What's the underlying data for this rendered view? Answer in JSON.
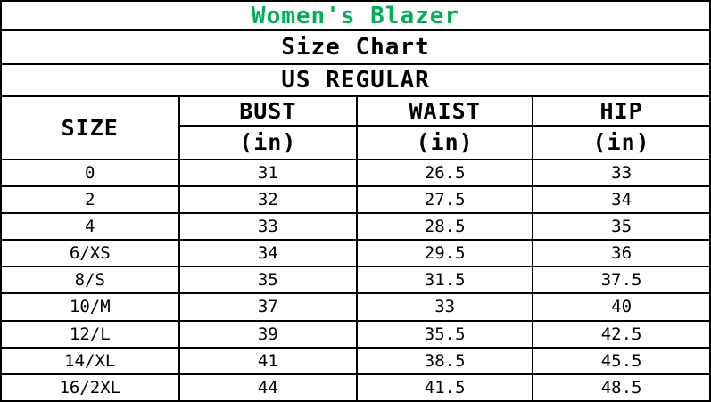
{
  "chart_data": {
    "type": "table",
    "title": "Women's Blazer",
    "subtitle": "Size Chart",
    "fit_standard": "US REGULAR",
    "header": {
      "size_label": "SIZE",
      "measurements": [
        {
          "label": "BUST",
          "unit": "(in)"
        },
        {
          "label": "WAIST",
          "unit": "(in)"
        },
        {
          "label": "HIP",
          "unit": "(in)"
        }
      ]
    },
    "rows": [
      {
        "size": "0",
        "bust": "31",
        "waist": "26.5",
        "hip": "33"
      },
      {
        "size": "2",
        "bust": "32",
        "waist": "27.5",
        "hip": "34"
      },
      {
        "size": "4",
        "bust": "33",
        "waist": "28.5",
        "hip": "35"
      },
      {
        "size": "6/XS",
        "bust": "34",
        "waist": "29.5",
        "hip": "36"
      },
      {
        "size": "8/S",
        "bust": "35",
        "waist": "31.5",
        "hip": "37.5"
      },
      {
        "size": "10/M",
        "bust": "37",
        "waist": "33",
        "hip": "40"
      },
      {
        "size": "12/L",
        "bust": "39",
        "waist": "35.5",
        "hip": "42.5"
      },
      {
        "size": "14/XL",
        "bust": "41",
        "waist": "38.5",
        "hip": "45.5"
      },
      {
        "size": "16/2XL",
        "bust": "44",
        "waist": "41.5",
        "hip": "48.5"
      }
    ],
    "colors": {
      "title_text": "#00AE56",
      "body_text": "#000000",
      "border": "#000000",
      "background": "#FFFFFF"
    },
    "layout_hints": {
      "columns": 4,
      "title_rows_span_all_columns": true,
      "size_header_rowspan": 2
    }
  }
}
